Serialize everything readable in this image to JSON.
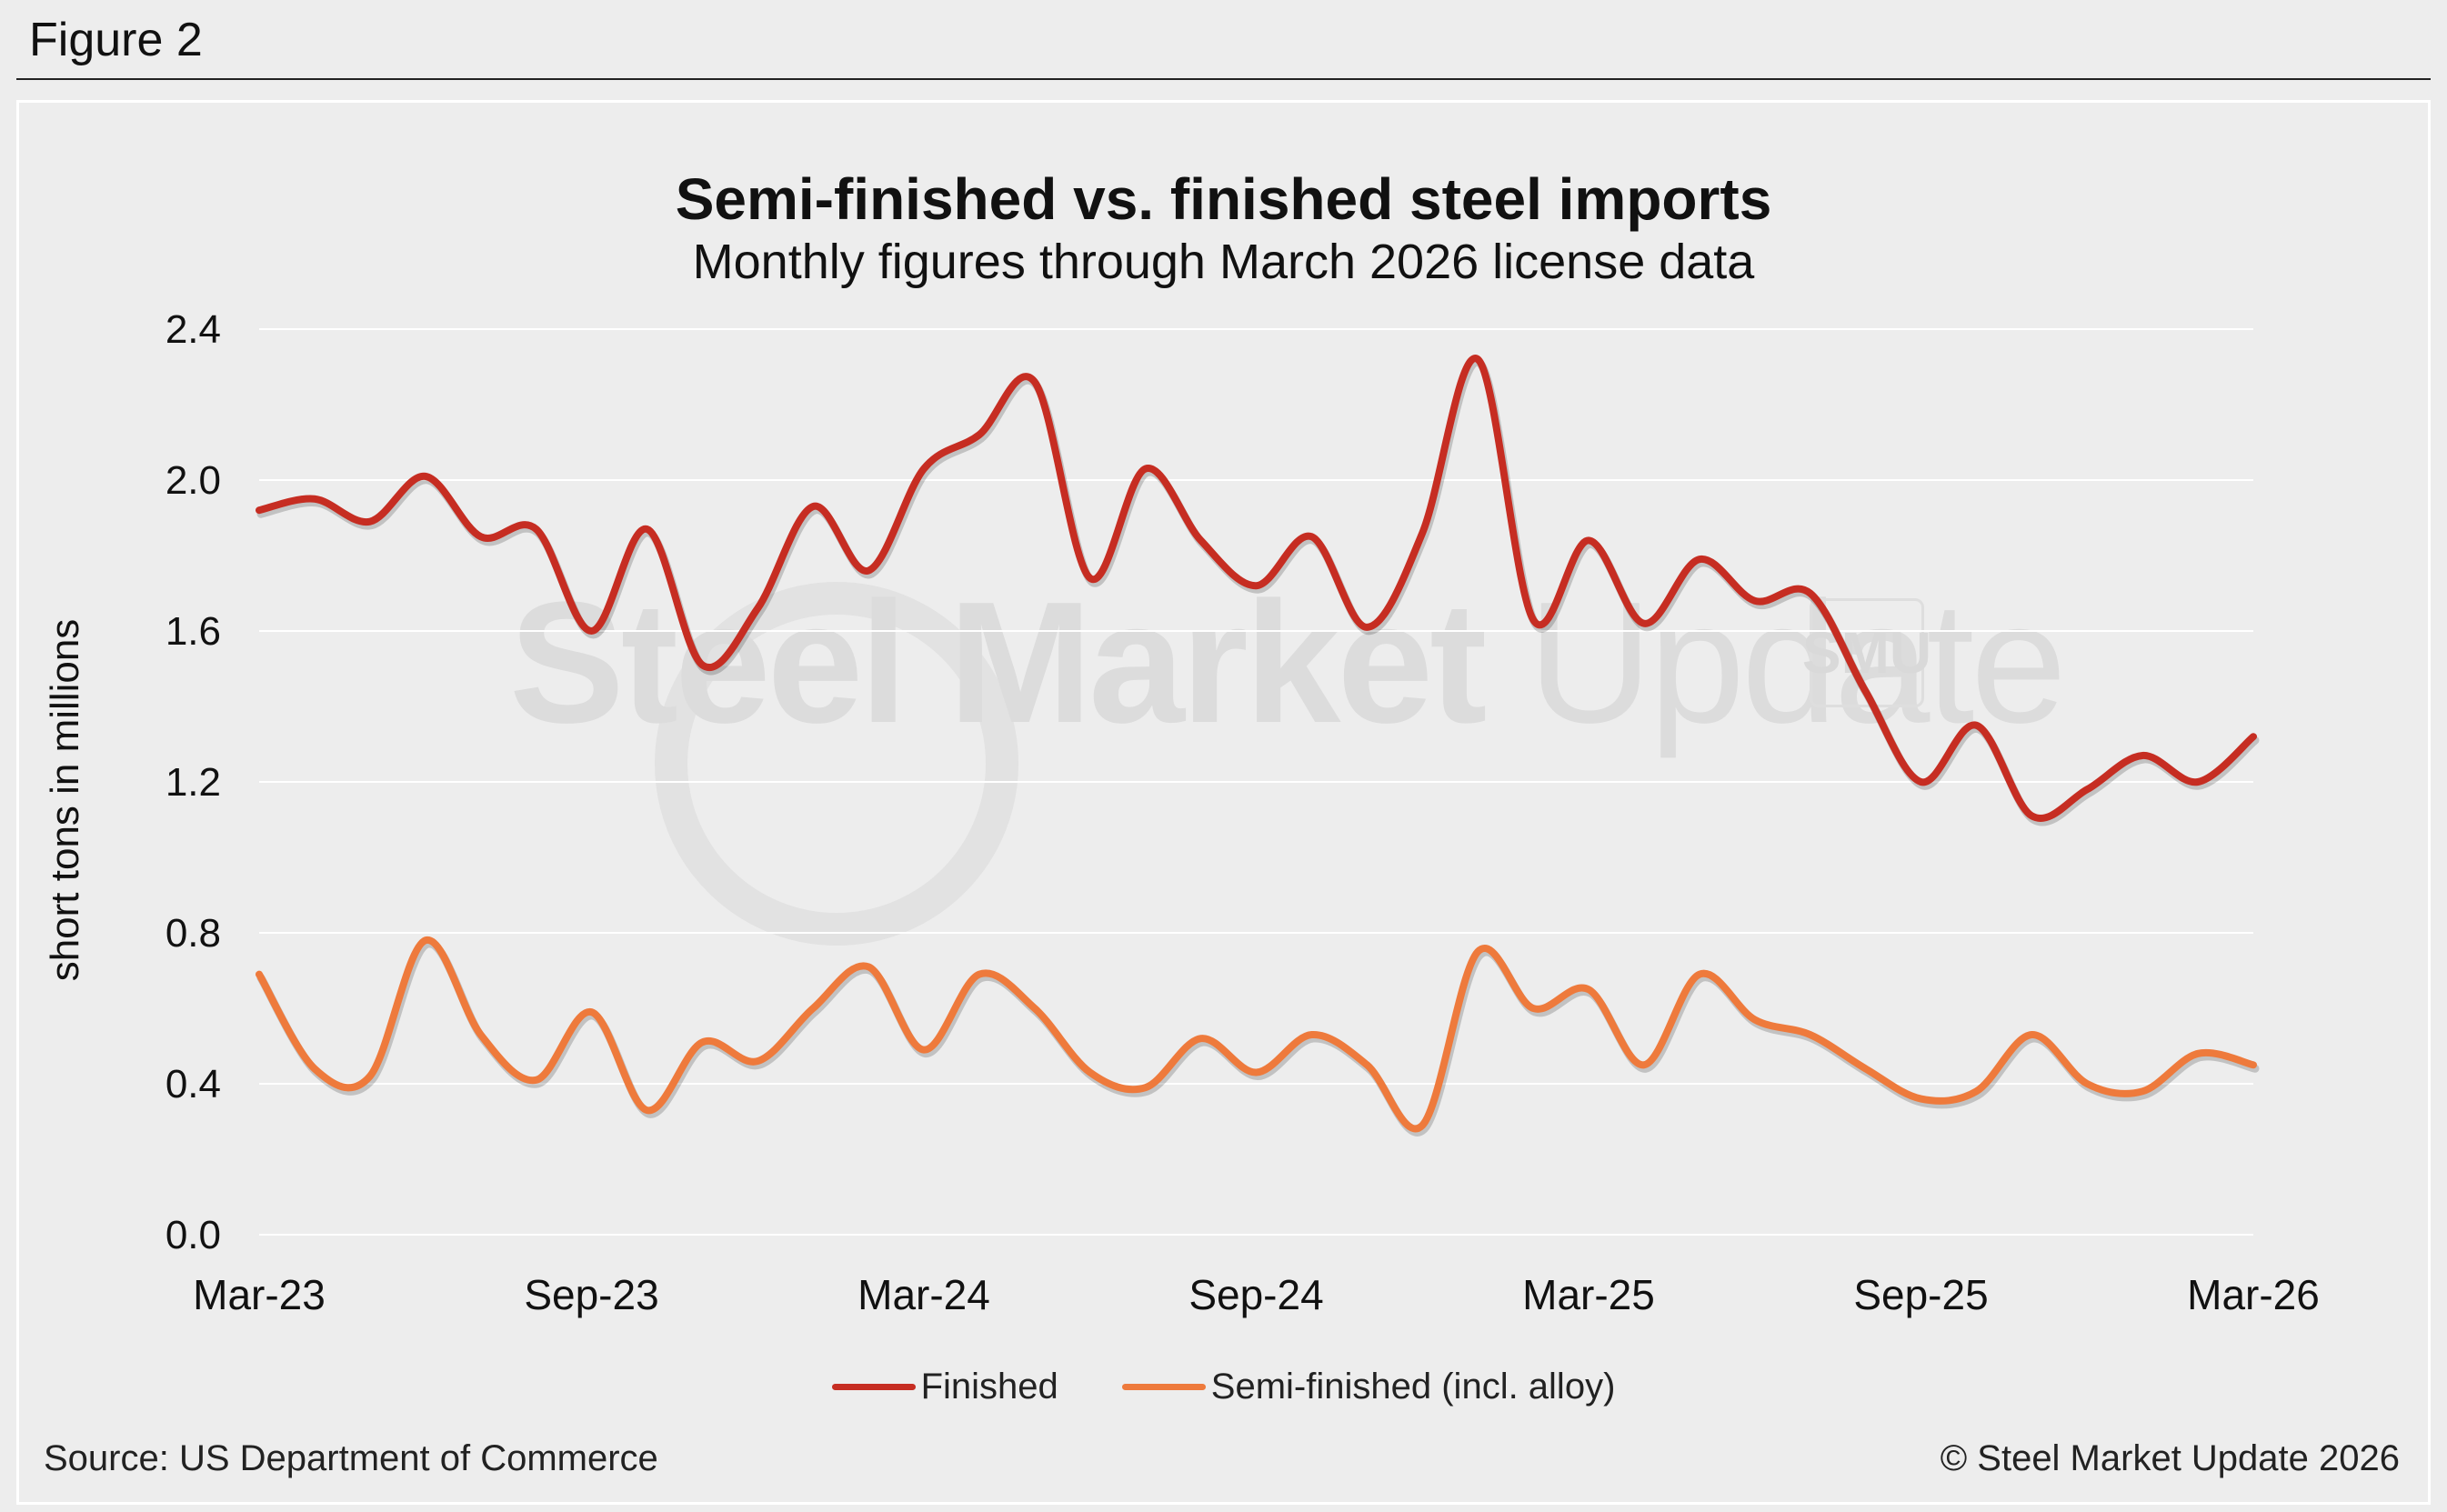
{
  "figure_label": "Figure 2",
  "watermark": {
    "bold_text": "Steel Market",
    "light_text": " Update",
    "badge_text": "SMU"
  },
  "footer": {
    "source": "Source: US Department of Commerce",
    "copyright": "© Steel Market Update 2026"
  },
  "colors": {
    "finished": "#c62d22",
    "semi_finished": "#ee7a3c",
    "grid": "#ffffff",
    "background": "#ededed"
  },
  "chart_data": {
    "type": "line",
    "title": "Semi-finished vs. finished steel imports",
    "subtitle": "Monthly figures through March 2026 license data",
    "xlabel": "",
    "ylabel": "short tons in millions",
    "ylim": [
      0,
      2.4
    ],
    "yticks": [
      "0.0",
      "0.4",
      "0.8",
      "1.2",
      "1.6",
      "2.0",
      "2.4"
    ],
    "x_tick_labels": [
      {
        "index": 0,
        "label": "Mar-23"
      },
      {
        "index": 6,
        "label": "Sep-23"
      },
      {
        "index": 12,
        "label": "Mar-24"
      },
      {
        "index": 18,
        "label": "Sep-24"
      },
      {
        "index": 24,
        "label": "Mar-25"
      },
      {
        "index": 30,
        "label": "Sep-25"
      },
      {
        "index": 36,
        "label": "Mar-26"
      }
    ],
    "categories": [
      "Mar-23",
      "Apr-23",
      "May-23",
      "Jun-23",
      "Jul-23",
      "Aug-23",
      "Sep-23",
      "Oct-23",
      "Nov-23",
      "Dec-23",
      "Jan-24",
      "Feb-24",
      "Mar-24",
      "Apr-24",
      "May-24",
      "Jun-24",
      "Jul-24",
      "Aug-24",
      "Sep-24",
      "Oct-24",
      "Nov-24",
      "Dec-24",
      "Jan-25",
      "Feb-25",
      "Mar-25",
      "Apr-25",
      "May-25",
      "Jun-25",
      "Jul-25",
      "Aug-25",
      "Sep-25",
      "Oct-25",
      "Nov-25",
      "Dec-25",
      "Jan-26",
      "Feb-26",
      "Mar-26"
    ],
    "series": [
      {
        "name": "Finished",
        "color": "#c62d22",
        "values": [
          1.92,
          1.95,
          1.89,
          2.01,
          1.85,
          1.87,
          1.6,
          1.87,
          1.51,
          1.66,
          1.93,
          1.76,
          2.03,
          2.12,
          2.26,
          1.74,
          2.03,
          1.84,
          1.72,
          1.85,
          1.61,
          1.86,
          2.32,
          1.63,
          1.84,
          1.62,
          1.79,
          1.68,
          1.7,
          1.44,
          1.2,
          1.35,
          1.11,
          1.18,
          1.27,
          1.2,
          1.32
        ]
      },
      {
        "name": "Semi-finished (incl. alloy)",
        "color": "#ee7a3c",
        "values": [
          0.69,
          0.44,
          0.42,
          0.78,
          0.53,
          0.41,
          0.59,
          0.33,
          0.51,
          0.46,
          0.6,
          0.71,
          0.49,
          0.69,
          0.6,
          0.43,
          0.39,
          0.52,
          0.43,
          0.53,
          0.45,
          0.29,
          0.75,
          0.6,
          0.65,
          0.45,
          0.69,
          0.57,
          0.53,
          0.44,
          0.36,
          0.38,
          0.53,
          0.4,
          0.38,
          0.48,
          0.45
        ]
      }
    ],
    "legend": "bottom-center"
  }
}
